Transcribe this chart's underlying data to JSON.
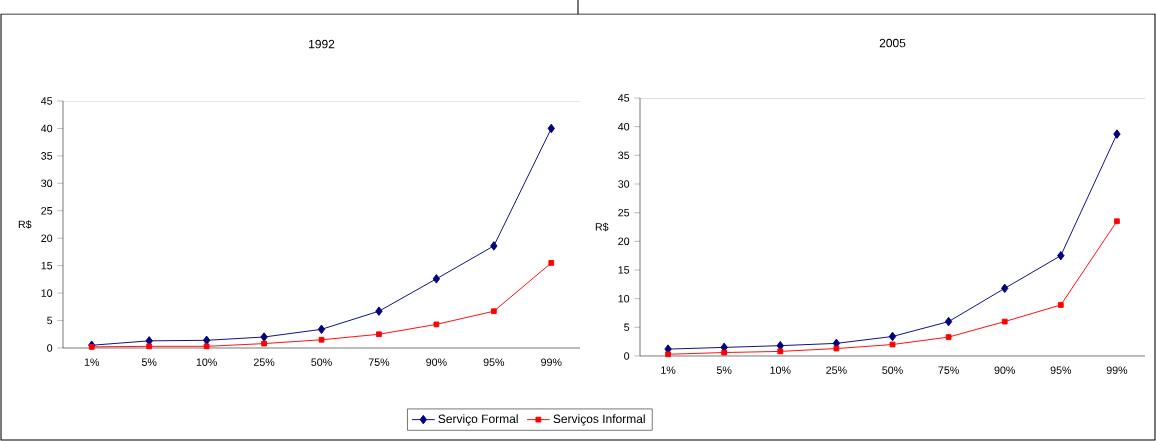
{
  "chart_data": [
    {
      "type": "line",
      "title": "1992",
      "ylabel": "R$",
      "categories": [
        "1%",
        "5%",
        "10%",
        "25%",
        "50%",
        "75%",
        "90%",
        "95%",
        "99%"
      ],
      "ylim": [
        0,
        45
      ],
      "yticks": [
        0,
        5,
        10,
        15,
        20,
        25,
        30,
        35,
        40,
        45
      ],
      "legend": "bottom",
      "grid": false,
      "series": [
        {
          "name": "Serviço Formal",
          "color": "#000080",
          "marker": "diamond",
          "values": [
            0.5,
            1.3,
            1.4,
            2.0,
            3.4,
            6.7,
            12.6,
            18.6,
            40.0
          ]
        },
        {
          "name": "Serviços Informal",
          "color": "#ff0000",
          "marker": "square",
          "values": [
            0.2,
            0.3,
            0.3,
            0.8,
            1.5,
            2.5,
            4.3,
            6.7,
            15.5
          ]
        }
      ]
    },
    {
      "type": "line",
      "title": "2005",
      "ylabel": "R$",
      "categories": [
        "1%",
        "5%",
        "10%",
        "25%",
        "50%",
        "75%",
        "90%",
        "95%",
        "99%"
      ],
      "ylim": [
        0,
        45
      ],
      "yticks": [
        0,
        5,
        10,
        15,
        20,
        25,
        30,
        35,
        40,
        45
      ],
      "grid": false,
      "series": [
        {
          "color": "#000080",
          "marker": "diamond",
          "values": [
            1.2,
            1.5,
            1.8,
            2.2,
            3.4,
            6.0,
            11.8,
            17.5,
            38.7
          ]
        },
        {
          "color": "#ff0000",
          "marker": "square",
          "values": [
            0.3,
            0.6,
            0.8,
            1.3,
            2.0,
            3.3,
            6.0,
            8.9,
            23.5
          ]
        }
      ]
    }
  ]
}
